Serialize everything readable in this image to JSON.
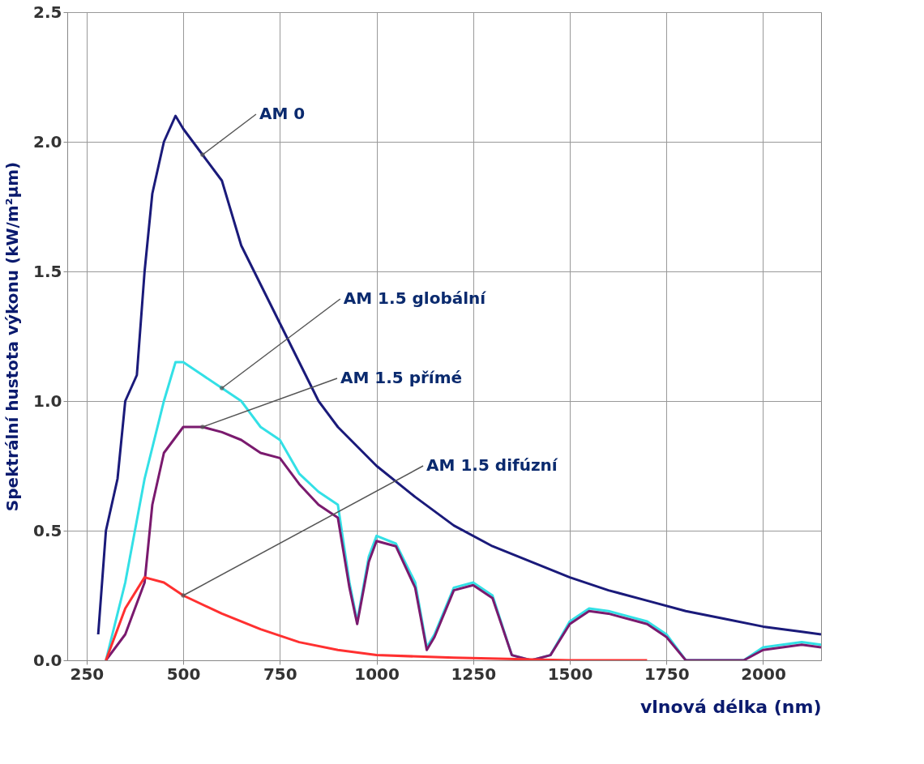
{
  "chart_data": {
    "type": "line",
    "xlabel": "vlnová délka (nm)",
    "ylabel": "Spektrální hustota výkonu (kW/m²μm)",
    "xlim": [
      200,
      2150
    ],
    "ylim": [
      0,
      2.5
    ],
    "xticks": [
      250,
      500,
      750,
      1000,
      1250,
      1500,
      1750,
      2000
    ],
    "yticks": [
      {
        "value": 0,
        "label": "0.0"
      },
      0.5,
      {
        "value": 1,
        "label": "1.0"
      },
      1.5,
      {
        "value": 2,
        "label": "2.0"
      },
      2.5
    ],
    "grid": true,
    "legend": false,
    "line_style": "solid",
    "marker": "none",
    "series": [
      {
        "color": "#1a1a7a",
        "x": [
          280,
          300,
          330,
          350,
          380,
          400,
          420,
          450,
          480,
          500,
          550,
          600,
          650,
          700,
          750,
          800,
          850,
          900,
          1000,
          1100,
          1200,
          1300,
          1400,
          1500,
          1600,
          1700,
          1800,
          1900,
          2000,
          2100,
          2150
        ],
        "values": [
          0.1,
          0.5,
          0.7,
          1.0,
          1.1,
          1.5,
          1.8,
          2.0,
          2.1,
          2.05,
          1.95,
          1.85,
          1.6,
          1.45,
          1.3,
          1.15,
          1.0,
          0.9,
          0.75,
          0.63,
          0.52,
          0.44,
          0.38,
          0.32,
          0.27,
          0.23,
          0.19,
          0.16,
          0.13,
          0.11,
          0.1
        ]
      },
      {
        "color": "#33e0e6",
        "x": [
          300,
          350,
          400,
          450,
          480,
          500,
          550,
          600,
          650,
          700,
          750,
          800,
          850,
          900,
          930,
          950,
          980,
          1000,
          1050,
          1100,
          1130,
          1150,
          1200,
          1250,
          1300,
          1350,
          1400,
          1450,
          1500,
          1550,
          1600,
          1700,
          1750,
          1800,
          1950,
          2000,
          2100,
          2150
        ],
        "values": [
          0,
          0.3,
          0.7,
          1.0,
          1.15,
          1.15,
          1.1,
          1.05,
          1.0,
          0.9,
          0.85,
          0.72,
          0.65,
          0.6,
          0.3,
          0.15,
          0.4,
          0.48,
          0.45,
          0.3,
          0.05,
          0.1,
          0.28,
          0.3,
          0.25,
          0.02,
          0,
          0.02,
          0.15,
          0.2,
          0.19,
          0.15,
          0.1,
          0,
          0,
          0.05,
          0.07,
          0.06
        ]
      },
      {
        "color": "#7a1a6e",
        "x": [
          300,
          350,
          400,
          420,
          450,
          500,
          550,
          600,
          650,
          700,
          750,
          800,
          850,
          900,
          930,
          950,
          980,
          1000,
          1050,
          1100,
          1130,
          1150,
          1200,
          1250,
          1300,
          1350,
          1400,
          1450,
          1500,
          1550,
          1600,
          1700,
          1750,
          1800,
          1950,
          2000,
          2100,
          2150
        ],
        "values": [
          0,
          0.1,
          0.3,
          0.6,
          0.8,
          0.9,
          0.9,
          0.88,
          0.85,
          0.8,
          0.78,
          0.68,
          0.6,
          0.55,
          0.28,
          0.14,
          0.38,
          0.46,
          0.44,
          0.28,
          0.04,
          0.09,
          0.27,
          0.29,
          0.24,
          0.02,
          0,
          0.02,
          0.14,
          0.19,
          0.18,
          0.14,
          0.09,
          0,
          0,
          0.04,
          0.06,
          0.05
        ]
      },
      {
        "color": "#ff3030",
        "x": [
          300,
          350,
          400,
          450,
          500,
          600,
          700,
          800,
          900,
          1000,
          1200,
          1500,
          1700
        ],
        "values": [
          0,
          0.2,
          0.32,
          0.3,
          0.25,
          0.18,
          0.12,
          0.07,
          0.04,
          0.02,
          0.01,
          0,
          0
        ]
      }
    ],
    "annotations": [
      {
        "text": "AM 0",
        "x": 550,
        "y": 1.95
      },
      {
        "text": "AM 1.5  globální",
        "x": 600,
        "y": 1.05
      },
      {
        "text": "AM 1.5 přímé",
        "x": 550,
        "y": 0.9
      },
      {
        "text": "AM 1.5  difúzní",
        "x": 500,
        "y": 0.25
      }
    ]
  }
}
